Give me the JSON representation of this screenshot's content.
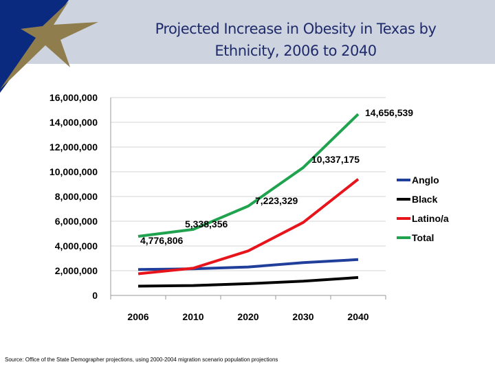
{
  "title_line1": "Projected Increase in Obesity in Texas by",
  "title_line2": "Ethnicity, 2006 to 2040",
  "source": "Source: Office of the State Demographer projections, using 2000-2004 migration scenario population projections",
  "colors": {
    "banner": "#cdd4e0",
    "logo_blue": "#0a2a80",
    "logo_gold": "#8f7d4e",
    "title": "#1f2a6b"
  },
  "chart_data": {
    "type": "line",
    "title": "Projected Increase in Obesity in Texas by Ethnicity, 2006 to 2040",
    "categories": [
      "2006",
      "2010",
      "2020",
      "2030",
      "2040"
    ],
    "ylim": [
      0,
      16000000
    ],
    "yticks": [
      "0",
      "2,000,000",
      "4,000,000",
      "6,000,000",
      "8,000,000",
      "10,000,000",
      "12,000,000",
      "14,000,000",
      "16,000,000"
    ],
    "grid": true,
    "legend_placement": "right",
    "series": [
      {
        "name": "Anglo",
        "color": "#1f3f9a",
        "values": [
          2100000,
          2150000,
          2300000,
          2650000,
          2900000
        ]
      },
      {
        "name": "Black",
        "color": "#000000",
        "values": [
          750000,
          800000,
          950000,
          1150000,
          1450000
        ]
      },
      {
        "name": "Latino/a",
        "color": "#e8141c",
        "values": [
          1750000,
          2200000,
          3600000,
          5900000,
          9400000
        ]
      },
      {
        "name": "Total",
        "color": "#1fa34f",
        "values": [
          4776806,
          5338356,
          7223329,
          10337175,
          14656539
        ]
      }
    ],
    "data_labels": [
      "4,776,806",
      "5,338,356",
      "7,223,329",
      "10,337,175",
      "14,656,539"
    ]
  }
}
